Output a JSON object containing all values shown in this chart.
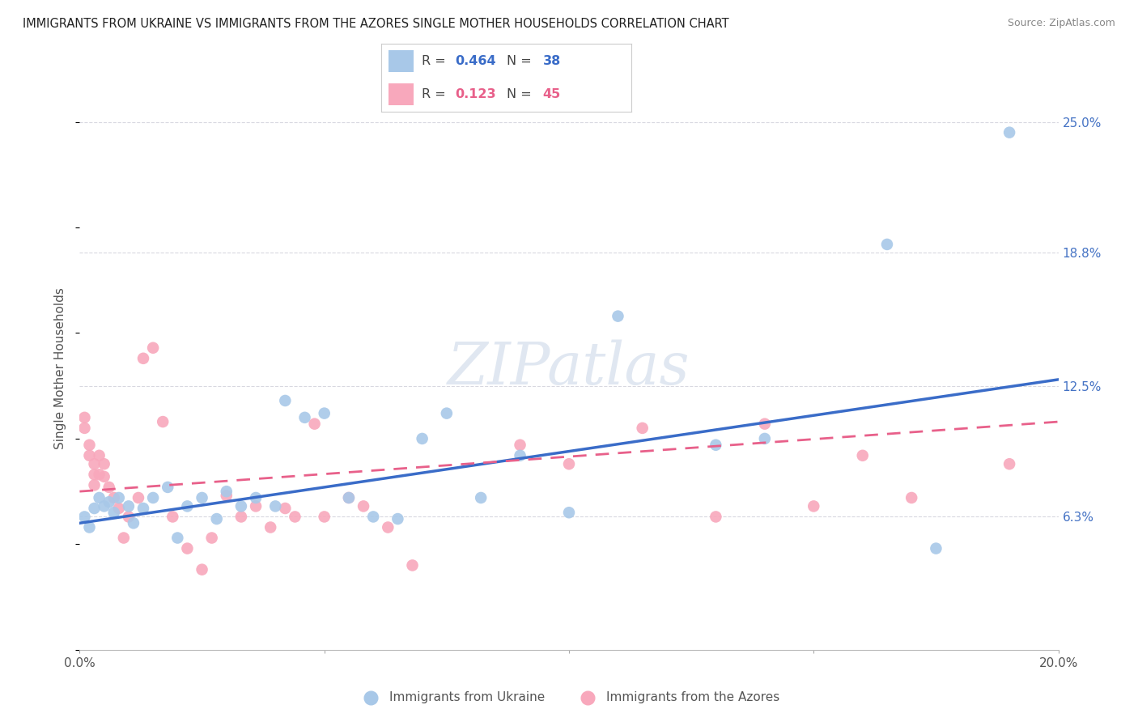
{
  "title": "IMMIGRANTS FROM UKRAINE VS IMMIGRANTS FROM THE AZORES SINGLE MOTHER HOUSEHOLDS CORRELATION CHART",
  "source": "Source: ZipAtlas.com",
  "ylabel": "Single Mother Households",
  "xlim": [
    0,
    0.2
  ],
  "ylim": [
    0,
    0.2667
  ],
  "xticks": [
    0.0,
    0.05,
    0.1,
    0.15,
    0.2
  ],
  "xtick_labels": [
    "0.0%",
    "",
    "",
    "",
    "20.0%"
  ],
  "ytick_labels_right": [
    "25.0%",
    "18.8%",
    "12.5%",
    "6.3%"
  ],
  "ytick_values_right": [
    0.25,
    0.188,
    0.125,
    0.063
  ],
  "ukraine_R": 0.464,
  "ukraine_N": 38,
  "azores_R": 0.123,
  "azores_N": 45,
  "ukraine_color": "#a8c8e8",
  "ukraine_line_color": "#3a6cc8",
  "azores_color": "#f8a8bc",
  "azores_line_color": "#e8608a",
  "background_color": "#ffffff",
  "grid_color": "#d8d8e0",
  "watermark_color": "#ccd8e8",
  "ukraine_x": [
    0.001,
    0.002,
    0.003,
    0.004,
    0.005,
    0.006,
    0.007,
    0.008,
    0.01,
    0.011,
    0.013,
    0.015,
    0.018,
    0.02,
    0.022,
    0.025,
    0.028,
    0.03,
    0.033,
    0.036,
    0.04,
    0.042,
    0.046,
    0.05,
    0.055,
    0.06,
    0.065,
    0.07,
    0.075,
    0.082,
    0.09,
    0.1,
    0.11,
    0.13,
    0.14,
    0.165,
    0.175,
    0.19
  ],
  "ukraine_y": [
    0.063,
    0.058,
    0.067,
    0.072,
    0.068,
    0.07,
    0.065,
    0.072,
    0.068,
    0.06,
    0.067,
    0.072,
    0.077,
    0.053,
    0.068,
    0.072,
    0.062,
    0.075,
    0.068,
    0.072,
    0.068,
    0.118,
    0.11,
    0.112,
    0.072,
    0.063,
    0.062,
    0.1,
    0.112,
    0.072,
    0.092,
    0.065,
    0.158,
    0.097,
    0.1,
    0.192,
    0.048,
    0.245
  ],
  "azores_x": [
    0.001,
    0.001,
    0.002,
    0.002,
    0.003,
    0.003,
    0.003,
    0.004,
    0.004,
    0.005,
    0.005,
    0.006,
    0.007,
    0.008,
    0.009,
    0.01,
    0.012,
    0.013,
    0.015,
    0.017,
    0.019,
    0.022,
    0.025,
    0.027,
    0.03,
    0.033,
    0.036,
    0.039,
    0.042,
    0.044,
    0.048,
    0.05,
    0.055,
    0.058,
    0.063,
    0.068,
    0.09,
    0.1,
    0.115,
    0.13,
    0.14,
    0.15,
    0.16,
    0.17,
    0.19
  ],
  "azores_y": [
    0.11,
    0.105,
    0.097,
    0.092,
    0.088,
    0.083,
    0.078,
    0.092,
    0.083,
    0.088,
    0.082,
    0.077,
    0.072,
    0.067,
    0.053,
    0.063,
    0.072,
    0.138,
    0.143,
    0.108,
    0.063,
    0.048,
    0.038,
    0.053,
    0.073,
    0.063,
    0.068,
    0.058,
    0.067,
    0.063,
    0.107,
    0.063,
    0.072,
    0.068,
    0.058,
    0.04,
    0.097,
    0.088,
    0.105,
    0.063,
    0.107,
    0.068,
    0.092,
    0.072,
    0.088
  ],
  "ukraine_trendline": [
    0.06,
    0.128
  ],
  "azores_trendline": [
    0.075,
    0.108
  ]
}
